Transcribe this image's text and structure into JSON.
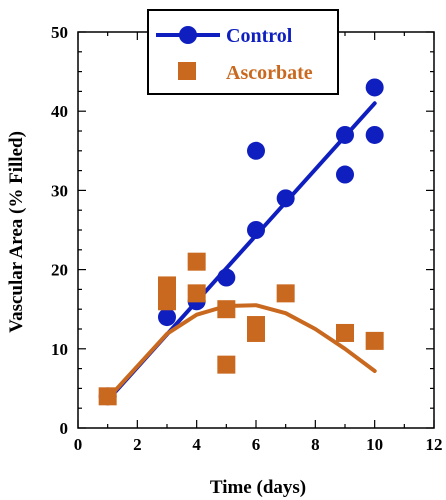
{
  "chart_data": {
    "type": "scatter",
    "xlabel": "Time (days)",
    "ylabel": "Vascular Area (% Filled)",
    "xlim": [
      0,
      12
    ],
    "ylim": [
      0,
      50
    ],
    "xticks": [
      0,
      2,
      4,
      6,
      8,
      10,
      12
    ],
    "yticks": [
      0,
      10,
      20,
      30,
      40,
      50
    ],
    "grid": false,
    "legend_position": "top-center",
    "series": [
      {
        "name": "Control",
        "color": "#0f1fbf",
        "marker": "circle",
        "points": [
          {
            "x": 1,
            "y": 4
          },
          {
            "x": 3,
            "y": 14
          },
          {
            "x": 4,
            "y": 16
          },
          {
            "x": 5,
            "y": 19
          },
          {
            "x": 6,
            "y": 35
          },
          {
            "x": 6,
            "y": 25
          },
          {
            "x": 7,
            "y": 29
          },
          {
            "x": 9,
            "y": 37
          },
          {
            "x": 9,
            "y": 32
          },
          {
            "x": 10,
            "y": 43
          },
          {
            "x": 10,
            "y": 37
          }
        ],
        "fit": {
          "type": "linear",
          "x": [
            1,
            10
          ],
          "y": [
            3.5,
            41
          ]
        }
      },
      {
        "name": "Ascorbate",
        "color": "#c9691f",
        "marker": "square",
        "points": [
          {
            "x": 1,
            "y": 4
          },
          {
            "x": 3,
            "y": 18
          },
          {
            "x": 3,
            "y": 17
          },
          {
            "x": 3,
            "y": 16
          },
          {
            "x": 4,
            "y": 21
          },
          {
            "x": 4,
            "y": 17
          },
          {
            "x": 5,
            "y": 15
          },
          {
            "x": 5,
            "y": 8
          },
          {
            "x": 6,
            "y": 13
          },
          {
            "x": 6,
            "y": 12
          },
          {
            "x": 7,
            "y": 17
          },
          {
            "x": 9,
            "y": 12
          },
          {
            "x": 10,
            "y": 11
          }
        ],
        "fit": {
          "type": "quadratic",
          "x": [
            1,
            3,
            4,
            5,
            6,
            7,
            8,
            9,
            10
          ],
          "y": [
            3.7,
            11.9,
            14.3,
            15.4,
            15.5,
            14.5,
            12.5,
            10.0,
            7.2
          ]
        }
      }
    ]
  }
}
